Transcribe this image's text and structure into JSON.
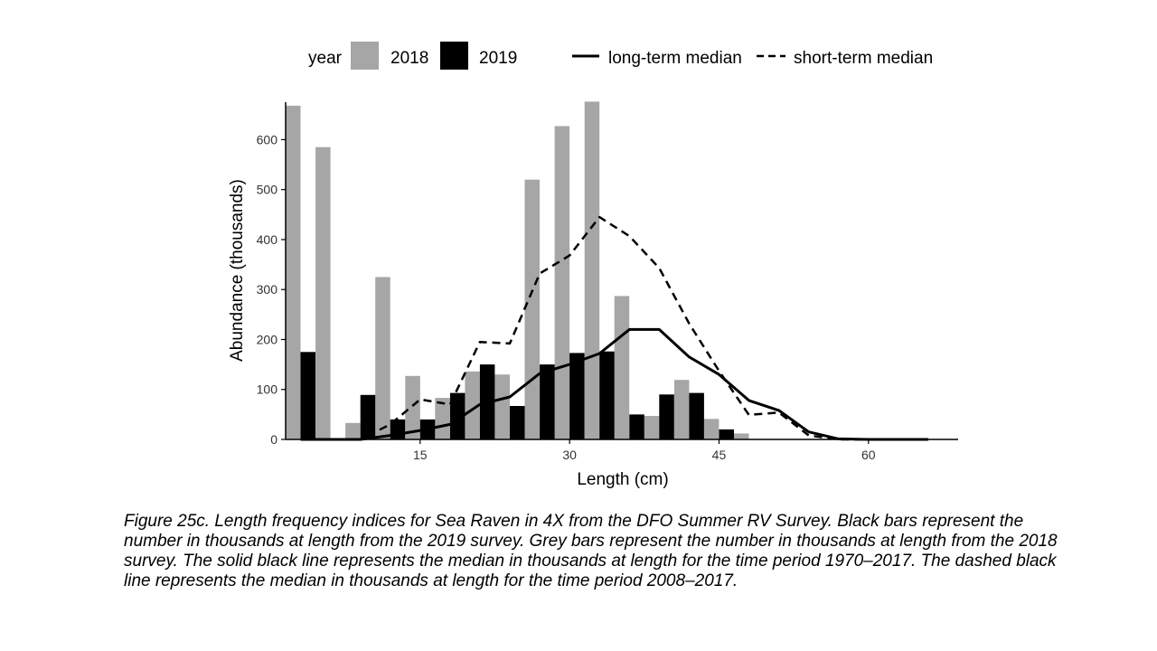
{
  "chart_data": {
    "type": "bar",
    "title": "",
    "xlabel": "Length (cm)",
    "ylabel": "Abundance (thousands)",
    "xlim": [
      1.5,
      69
    ],
    "ylim": [
      0,
      675
    ],
    "x_ticks": [
      15,
      30,
      45,
      60
    ],
    "y_ticks": [
      0,
      100,
      200,
      300,
      400,
      500,
      600
    ],
    "bar_width_cm": 1.5,
    "legend": {
      "position": "top",
      "fill_title": "year",
      "line_items": [
        "long-term median",
        "short-term median"
      ]
    },
    "colors": {
      "2018": "#a6a6a6",
      "2019": "#000000",
      "line": "#000000",
      "axis": "#000000"
    },
    "x": [
      3,
      6,
      9,
      12,
      15,
      18,
      21,
      24,
      27,
      30,
      33,
      36,
      39,
      42,
      45,
      48,
      51,
      54,
      57,
      60,
      63,
      66
    ],
    "series": [
      {
        "name": "2018",
        "kind": "bar",
        "values": [
          668,
          585,
          33,
          325,
          127,
          83,
          136,
          130,
          520,
          627,
          676,
          287,
          47,
          119,
          41,
          12,
          0,
          0,
          0,
          0,
          0,
          0
        ]
      },
      {
        "name": "2019",
        "kind": "bar",
        "values": [
          175,
          0,
          89,
          40,
          40,
          93,
          150,
          67,
          150,
          173,
          176,
          50,
          90,
          93,
          20,
          0,
          0,
          0,
          0,
          0,
          0,
          0
        ]
      },
      {
        "name": "long-term median",
        "kind": "line",
        "style": "solid",
        "values": [
          0,
          0,
          0,
          8,
          18,
          30,
          70,
          85,
          132,
          150,
          172,
          220,
          220,
          165,
          130,
          78,
          58,
          15,
          1,
          0,
          0,
          0
        ]
      },
      {
        "name": "short-term median",
        "kind": "line",
        "style": "dashed",
        "values": [
          0,
          0,
          0,
          30,
          80,
          70,
          195,
          192,
          332,
          368,
          445,
          407,
          343,
          232,
          137,
          49,
          54,
          8,
          0,
          0,
          0,
          0
        ]
      }
    ]
  },
  "caption": "Figure 25c. Length frequency indices for Sea Raven in 4X from the DFO Summer RV Survey. Black bars represent the number in thousands at length from the 2019 survey. Grey bars represent the number in thousands at length from the 2018 survey. The solid black line represents the median in thousands at length for the time period 1970–2017. The dashed black line represents the median in thousands at length for the time period 2008–2017."
}
